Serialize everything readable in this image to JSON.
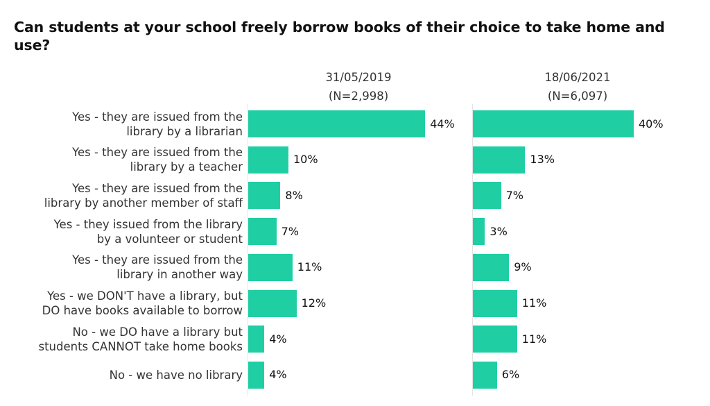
{
  "chart_data": {
    "type": "bar",
    "orientation": "horizontal",
    "title": "Can students at your school freely borrow books of their choice to take home and use?",
    "bar_color": "#1fcfa3",
    "value_suffix": "%",
    "categories": [
      [
        "Yes - they are issued from the",
        "library by a librarian"
      ],
      [
        "Yes - they are issued from the",
        "library by a teacher"
      ],
      [
        "Yes - they are issued from the",
        "library by another member of staff"
      ],
      [
        "Yes - they issued from the library",
        "by a volunteer or student"
      ],
      [
        "Yes - they are issued from the",
        "library in another way"
      ],
      [
        "Yes - we DON'T have a library, but",
        "DO have books available to borrow"
      ],
      [
        "No - we DO have a library but",
        "students CANNOT take home books"
      ],
      [
        "No - we have no library"
      ]
    ],
    "xlim": [
      0,
      45
    ],
    "panels": [
      {
        "date": "31/05/2019",
        "n_label": "(N=2,998)",
        "values": [
          44,
          10,
          8,
          7,
          11,
          12,
          4,
          4
        ]
      },
      {
        "date": "18/06/2021",
        "n_label": "(N=6,097)",
        "values": [
          40,
          13,
          7,
          3,
          9,
          11,
          11,
          6
        ]
      }
    ]
  }
}
